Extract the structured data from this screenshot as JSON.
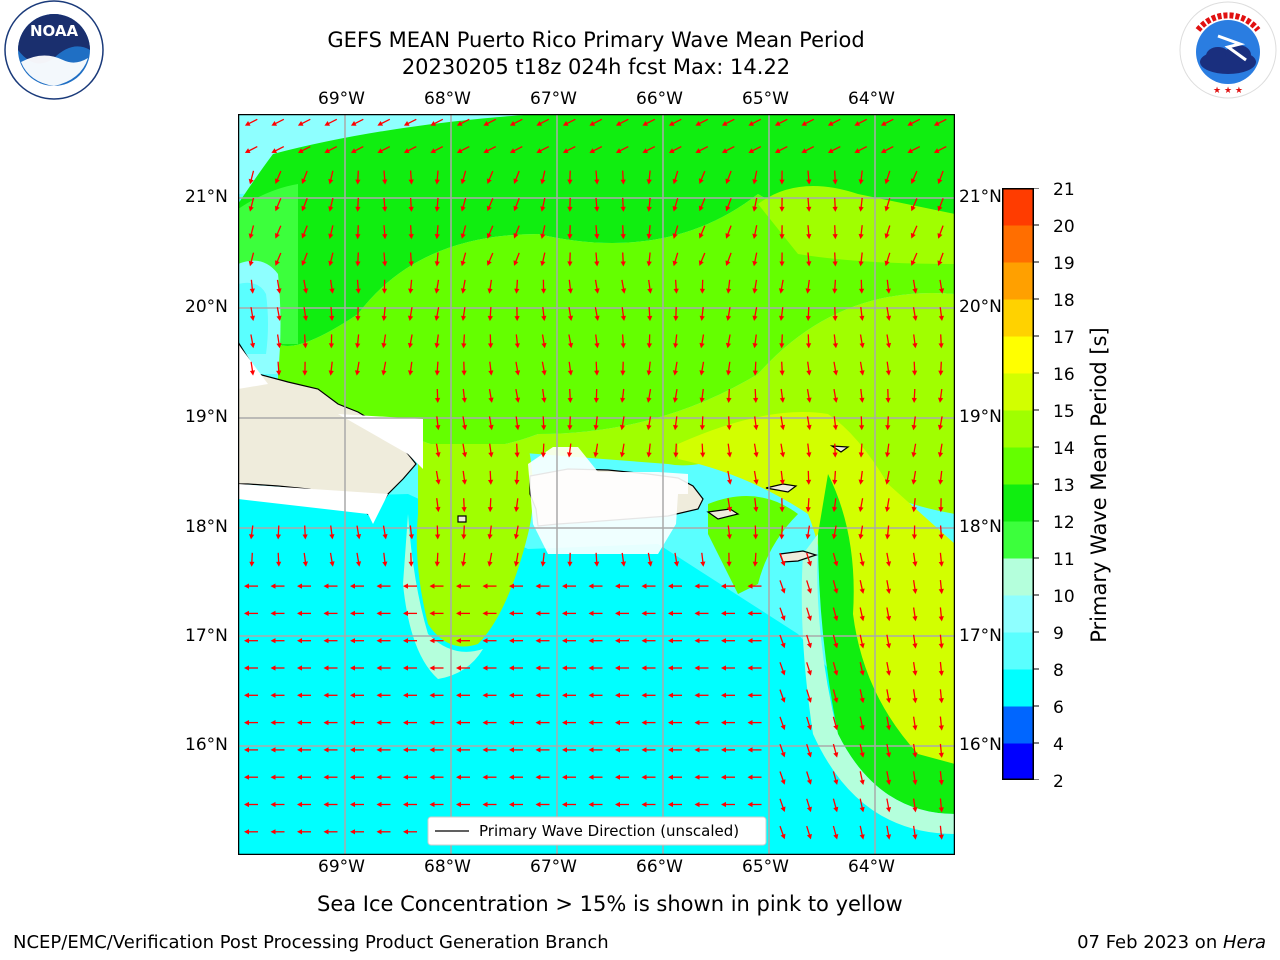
{
  "header": {
    "title_line1": "GEFS MEAN Puerto Rico Primary Wave Mean Period",
    "title_line2": "20230205 t18z 024h fcst   Max: 14.22"
  },
  "logos": {
    "left": "NOAA",
    "left_ring_text": "NATIONAL OCEANIC AND ATMOSPHERIC ADMINISTRATION · U.S. DEPARTMENT OF COMMERCE",
    "right_ring_text": "NATIONAL WEATHER SERVICE"
  },
  "map": {
    "lon_labels": [
      "69°W",
      "68°W",
      "67°W",
      "66°W",
      "65°W",
      "64°W"
    ],
    "lat_labels": [
      "21°N",
      "20°N",
      "19°N",
      "18°N",
      "17°N",
      "16°N"
    ],
    "legend_label": "Primary Wave Direction (unscaled)",
    "arrow_color": "#ff0000",
    "land_color": "#efecdc"
  },
  "colorbar": {
    "label": "Primary Wave Mean Period [s]",
    "ticks": [
      "21",
      "20",
      "19",
      "18",
      "17",
      "16",
      "15",
      "14",
      "13",
      "12",
      "11",
      "10",
      "9",
      "8",
      "6",
      "4",
      "2"
    ],
    "colors_bottom_to_top": [
      "#0000ff",
      "#0066ff",
      "#00ffff",
      "#5affff",
      "#8effff",
      "#b4ffdc",
      "#3cff3c",
      "#10ee10",
      "#64ff00",
      "#a0ff00",
      "#d2ff00",
      "#ffff00",
      "#ffd200",
      "#ffa000",
      "#ff6e00",
      "#ff3c00",
      "#ff0000"
    ]
  },
  "footer": {
    "sea_ice_note": "Sea Ice Concentration > 15% is shown in pink to yellow",
    "left": "NCEP/EMC/Verification Post Processing Product Generation Branch",
    "right_prefix": "07 Feb 2023 on ",
    "right_machine": "Hera"
  }
}
